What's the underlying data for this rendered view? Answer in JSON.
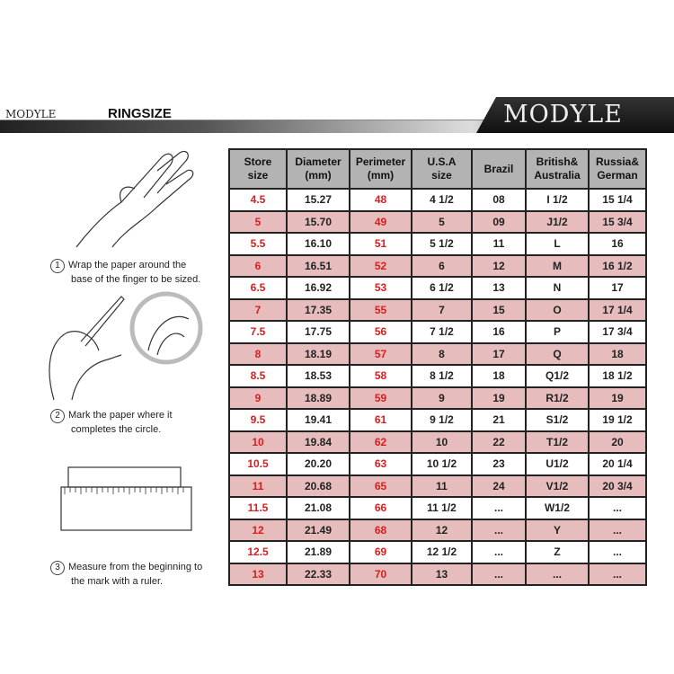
{
  "header": {
    "brand_small": "MODYLE",
    "title": "RINGSIZE",
    "brand_large": "MODYLE"
  },
  "steps": [
    {
      "num": "1",
      "line1": "Wrap the paper around the",
      "line2": "base of the finger to be sized."
    },
    {
      "num": "2",
      "line1": "Mark the paper where it",
      "line2": "completes the circle."
    },
    {
      "num": "3",
      "line1": "Measure from the beginning to",
      "line2": "the mark with a ruler."
    }
  ],
  "table": {
    "headers": [
      [
        "Store",
        "size"
      ],
      [
        "Diameter",
        "(mm)"
      ],
      [
        "Perimeter",
        "(mm)"
      ],
      [
        "U.S.A",
        "size"
      ],
      [
        "Brazil",
        ""
      ],
      [
        "British&",
        "Australia"
      ],
      [
        "Russia&",
        "German"
      ]
    ],
    "rows": [
      [
        "4.5",
        "15.27",
        "48",
        "4 1/2",
        "08",
        "I 1/2",
        "15 1/4"
      ],
      [
        "5",
        "15.70",
        "49",
        "5",
        "09",
        "J1/2",
        "15 3/4"
      ],
      [
        "5.5",
        "16.10",
        "51",
        "5 1/2",
        "11",
        "L",
        "16"
      ],
      [
        "6",
        "16.51",
        "52",
        "6",
        "12",
        "M",
        "16 1/2"
      ],
      [
        "6.5",
        "16.92",
        "53",
        "6 1/2",
        "13",
        "N",
        "17"
      ],
      [
        "7",
        "17.35",
        "55",
        "7",
        "15",
        "O",
        "17 1/4"
      ],
      [
        "7.5",
        "17.75",
        "56",
        "7 1/2",
        "16",
        "P",
        "17 3/4"
      ],
      [
        "8",
        "18.19",
        "57",
        "8",
        "17",
        "Q",
        "18"
      ],
      [
        "8.5",
        "18.53",
        "58",
        "8 1/2",
        "18",
        "Q1/2",
        "18 1/2"
      ],
      [
        "9",
        "18.89",
        "59",
        "9",
        "19",
        "R1/2",
        "19"
      ],
      [
        "9.5",
        "19.41",
        "61",
        "9 1/2",
        "21",
        "S1/2",
        "19 1/2"
      ],
      [
        "10",
        "19.84",
        "62",
        "10",
        "22",
        "T1/2",
        "20"
      ],
      [
        "10.5",
        "20.20",
        "63",
        "10 1/2",
        "23",
        "U1/2",
        "20 1/4"
      ],
      [
        "11",
        "20.68",
        "65",
        "11",
        "24",
        "V1/2",
        "20 3/4"
      ],
      [
        "11.5",
        "21.08",
        "66",
        "11 1/2",
        "...",
        "W1/2",
        "..."
      ],
      [
        "12",
        "21.49",
        "68",
        "12",
        "...",
        "Y",
        "..."
      ],
      [
        "12.5",
        "21.89",
        "69",
        "12 1/2",
        "...",
        "Z",
        "..."
      ],
      [
        "13",
        "22.33",
        "70",
        "13",
        "...",
        "...",
        "..."
      ]
    ]
  },
  "colors": {
    "pink_row": "#e6bcbc",
    "header_bg": "#b3b3b3",
    "red_text": "#d42020"
  }
}
